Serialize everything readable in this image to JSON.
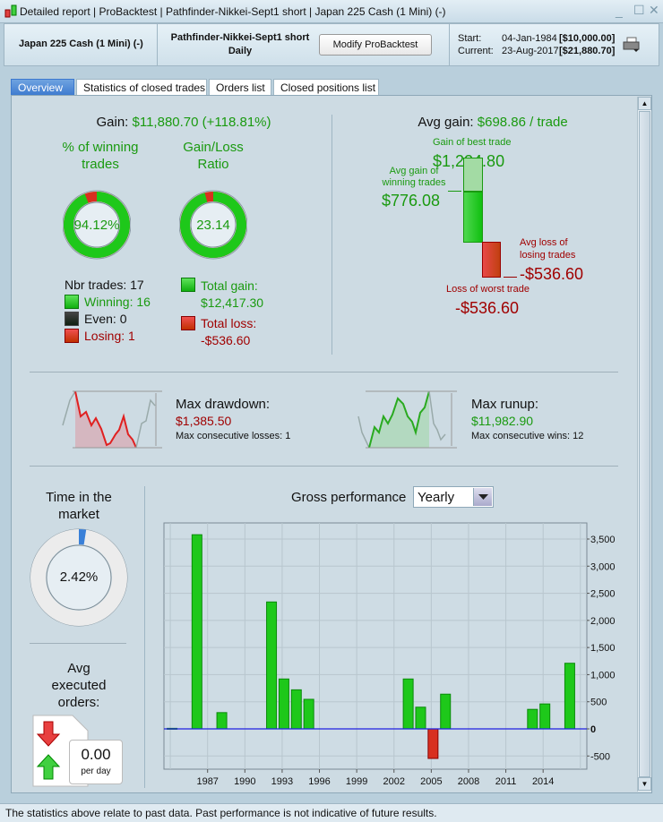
{
  "window": {
    "title_parts": [
      "Detailed report",
      "ProBacktest",
      "Pathfinder-Nikkei-Sept1 short",
      "Japan 225 Cash (1 Mini) (-)"
    ],
    "title": "Detailed report | ProBacktest | Pathfinder-Nikkei-Sept1 short | Japan 225 Cash (1 Mini) (-)"
  },
  "header": {
    "instrument": "Japan 225 Cash (1 Mini) (-)",
    "system": "Pathfinder-Nikkei-Sept1 short",
    "timeframe": "Daily",
    "modify_button": "Modify ProBacktest",
    "start_label": "Start:",
    "start_date": "04-Jan-1984",
    "start_value": "[$10,000.00]",
    "current_label": "Current:",
    "current_date": "23-Aug-2017",
    "current_value": "[$21,880.70]"
  },
  "tabs": [
    {
      "label": "Overview",
      "active": true
    },
    {
      "label": "Statistics of closed trades"
    },
    {
      "label": "Orders list"
    },
    {
      "label": "Closed positions list"
    }
  ],
  "gain": {
    "label": "Gain:",
    "value": "$11,880.70 (+118.81%)"
  },
  "winning": {
    "title_1": "% of winning",
    "title_2": "trades",
    "value": "94.12%",
    "fraction": 0.9412
  },
  "ratio": {
    "title_1": "Gain/Loss",
    "title_2": "Ratio",
    "value": "23.14",
    "fraction": 0.9586
  },
  "trades": {
    "nbr": "Nbr trades: 17",
    "winning": "Winning: 16",
    "even": "Even: 0",
    "losing": "Losing: 1"
  },
  "totals": {
    "gain_label": "Total gain:",
    "gain_value": "$12,417.30",
    "loss_label": "Total loss:",
    "loss_value": "-$536.60"
  },
  "avg": {
    "label": "Avg gain:",
    "value": "$698.86 / trade",
    "best_label": "Gain of best trade",
    "best_value": "$1,224.80",
    "avg_win_label_1": "Avg gain of",
    "avg_win_label_2": "winning trades",
    "avg_win_value": "$776.08",
    "avg_loss_label_1": "Avg loss of",
    "avg_loss_label_2": "losing trades",
    "avg_loss_value": "-$536.60",
    "worst_label": "Loss of worst trade",
    "worst_value": "-$536.60"
  },
  "drawdown": {
    "label": "Max drawdown:",
    "value": "$1,385.50",
    "consecutive": "Max consecutive losses: 1"
  },
  "runup": {
    "label": "Max runup:",
    "value": "$11,982.90",
    "consecutive": "Max consecutive wins: 12"
  },
  "time_market": {
    "title_1": "Time in the",
    "title_2": "market",
    "value": "2.42%",
    "fraction": 0.0242
  },
  "orders": {
    "title_1": "Avg",
    "title_2": "executed",
    "title_3": "orders:",
    "value": "0.00",
    "unit": "per day"
  },
  "gross": {
    "title": "Gross performance",
    "period": "Yearly"
  },
  "chart_data": {
    "type": "bar",
    "x": [
      1984,
      1986,
      1988,
      1992,
      1993,
      1994,
      1995,
      2003,
      2004,
      2005,
      2006,
      2013,
      2014,
      2016
    ],
    "values": [
      10,
      3580,
      300,
      2340,
      920,
      720,
      545,
      920,
      400,
      -545,
      640,
      360,
      460,
      1210
    ],
    "xticks": [
      "1987",
      "1990",
      "1993",
      "1996",
      "1999",
      "2002",
      "2005",
      "2008",
      "2011",
      "2014"
    ],
    "yticks": [
      "3,500",
      "3,000",
      "2,500",
      "2,000",
      "1,500",
      "1,000",
      "500",
      "0",
      "-500"
    ],
    "ylim": [
      -700,
      3800
    ],
    "grid": true,
    "colors": {
      "positive": "#1ec81a",
      "negative": "#d83020",
      "zero_line": "#2020e0"
    }
  },
  "status": "The statistics above relate to past data. Past performance is not indicative of future results."
}
